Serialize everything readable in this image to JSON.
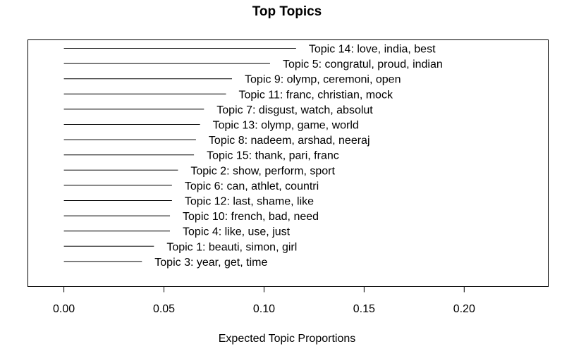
{
  "chart_data": {
    "type": "bar",
    "orientation": "horizontal",
    "title": "Top Topics",
    "xlabel": "Expected Topic Proportions",
    "ylabel": "",
    "xlim": [
      -0.018,
      0.242
    ],
    "xticks": [
      0.0,
      0.05,
      0.1,
      0.15,
      0.2
    ],
    "xtick_labels": [
      "0.00",
      "0.05",
      "0.10",
      "0.15",
      "0.20"
    ],
    "grid": false,
    "categories": [
      "Topic 14: love, india, best",
      "Topic 5: congratul, proud, indian",
      "Topic 9: olymp, ceremoni, open",
      "Topic 11: franc, christian, mock",
      "Topic 7: disgust, watch, absolut",
      "Topic 13: olymp, game, world",
      "Topic 8: nadeem, arshad, neeraj",
      "Topic 15: thank, pari, franc",
      "Topic 2: show, perform, sport",
      "Topic 6: can, athlet, countri",
      "Topic 12: last, shame, like",
      "Topic 10: french, bad, need",
      "Topic 4: like, use, just",
      "Topic 1: beauti, simon, girl",
      "Topic 3: year, get, time"
    ],
    "values": [
      0.116,
      0.103,
      0.084,
      0.081,
      0.07,
      0.068,
      0.066,
      0.065,
      0.057,
      0.054,
      0.054,
      0.053,
      0.053,
      0.045,
      0.039
    ]
  }
}
